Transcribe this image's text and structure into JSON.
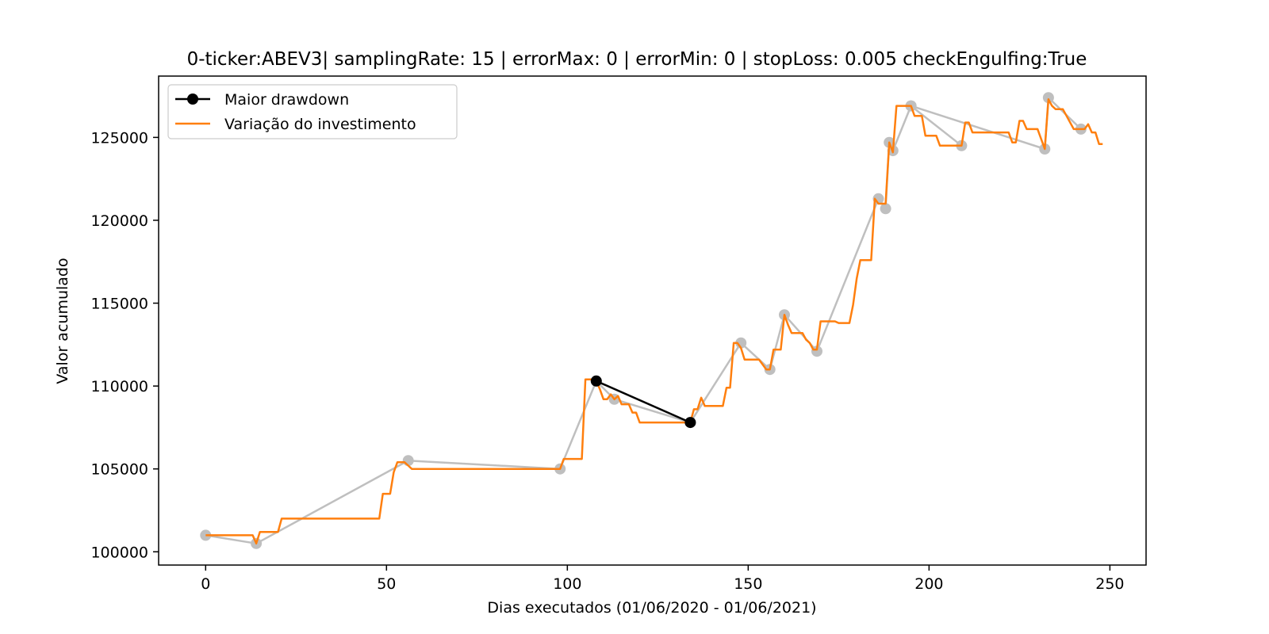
{
  "chart_data": {
    "type": "line",
    "title": "0-ticker:ABEV3| samplingRate: 15 | errorMax: 0 | errorMin: 0 | stopLoss: 0.005 checkEngulfing:True",
    "xlabel": "Dias executados (01/06/2020 - 01/06/2021)",
    "ylabel": "Valor acumulado",
    "xlim": [
      -13,
      260
    ],
    "ylim": [
      99200,
      128700
    ],
    "x_ticks": [
      0,
      50,
      100,
      150,
      200,
      250
    ],
    "y_ticks": [
      100000,
      105000,
      110000,
      115000,
      120000,
      125000
    ],
    "grid": false,
    "legend_position": "upper-left",
    "colors": {
      "investment": "#ff7f0e",
      "drawdown": "#000000",
      "extrema": "#bfbfbf"
    },
    "series": [
      {
        "name": "Maior drawdown",
        "style": "line-with-markers",
        "x": [
          108,
          134
        ],
        "y": [
          110300,
          107800
        ]
      },
      {
        "name": "Variação do investimento",
        "style": "line",
        "x": [
          0,
          13,
          14,
          15,
          20,
          21,
          48,
          49,
          51,
          52,
          53,
          55,
          56,
          57,
          98,
          99,
          100,
          104,
          105,
          107,
          108,
          109,
          110,
          111,
          112,
          113,
          114,
          115,
          116,
          117,
          118,
          119,
          120,
          121,
          122,
          123,
          130,
          134,
          135,
          136,
          137,
          138,
          139,
          141,
          142,
          143,
          144,
          145,
          146,
          147,
          148,
          149,
          150,
          152,
          153,
          155,
          156,
          157,
          158,
          159,
          160,
          161,
          162,
          163,
          164,
          165,
          166,
          167,
          168,
          169,
          170,
          171,
          174,
          175,
          178,
          179,
          180,
          181,
          182,
          183,
          184,
          185,
          186,
          187,
          188,
          189,
          190,
          191,
          192,
          194,
          195,
          196,
          197,
          198,
          199,
          200,
          201,
          202,
          203,
          208,
          209,
          210,
          211,
          212,
          213,
          215,
          220,
          222,
          223,
          224,
          225,
          226,
          227,
          229,
          230,
          232,
          233,
          234,
          235,
          236,
          237,
          238,
          240,
          241,
          242,
          243,
          244,
          245,
          246,
          247,
          248
        ],
        "y": [
          101000,
          101000,
          100500,
          101200,
          101200,
          102000,
          102000,
          103500,
          103500,
          104800,
          105400,
          105400,
          105200,
          105000,
          105000,
          105600,
          105600,
          105600,
          110400,
          110400,
          110300,
          109800,
          109200,
          109200,
          109500,
          109200,
          109400,
          108900,
          108900,
          108900,
          108400,
          108400,
          107800,
          107800,
          107800,
          107800,
          107800,
          107800,
          108600,
          108600,
          109300,
          108800,
          108800,
          108800,
          108800,
          108800,
          109900,
          109900,
          112600,
          112600,
          112300,
          111600,
          111600,
          111600,
          111600,
          111000,
          111000,
          112200,
          112200,
          112200,
          114300,
          113700,
          113200,
          113200,
          113200,
          113200,
          112800,
          112600,
          112200,
          112200,
          113900,
          113900,
          113900,
          113800,
          113800,
          114900,
          116500,
          117600,
          117600,
          117600,
          117600,
          121300,
          121000,
          121000,
          121000,
          124700,
          124100,
          126900,
          126900,
          126900,
          126900,
          126300,
          126300,
          126300,
          125100,
          125100,
          125100,
          125100,
          124500,
          124500,
          124500,
          125900,
          125900,
          125300,
          125300,
          125300,
          125300,
          125300,
          124700,
          124700,
          126000,
          126000,
          125500,
          125500,
          125500,
          124300,
          127300,
          126900,
          126700,
          126700,
          126700,
          126300,
          125500,
          125500,
          125500,
          125500,
          125800,
          125300,
          125300,
          124600,
          124600
        ]
      },
      {
        "name": "",
        "style": "gray-extrema-line",
        "x": [
          0,
          14,
          56,
          98,
          108,
          113,
          134,
          148,
          156,
          160,
          169,
          186,
          188,
          189,
          190,
          195,
          209,
          195,
          232,
          233,
          242
        ],
        "y": [
          101000,
          100500,
          105500,
          105000,
          110300,
          109200,
          107800,
          112600,
          111000,
          114300,
          112100,
          121300,
          120700,
          124700,
          124200,
          126900,
          124500,
          126900,
          124300,
          127400,
          125500
        ]
      }
    ],
    "legend": [
      {
        "label": "Maior drawdown",
        "marker": "line-dot",
        "color": "#000000"
      },
      {
        "label": "Variação do investimento",
        "marker": "line",
        "color": "#ff7f0e"
      }
    ]
  }
}
